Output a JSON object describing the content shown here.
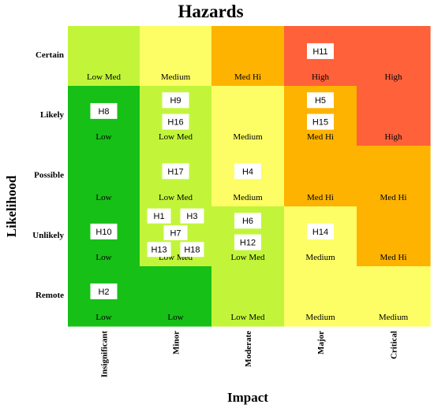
{
  "chart_data": {
    "type": "heatmap",
    "title": "Hazards",
    "xlabel": "Impact",
    "ylabel": "Likelihood",
    "x_categories": [
      "Insignificant",
      "Minor",
      "Moderate",
      "Major",
      "Critical"
    ],
    "y_categories": [
      "Certain",
      "Likely",
      "Possible",
      "Unlikely",
      "Remote"
    ],
    "cells": [
      [
        "Low Med",
        "Medium",
        "Med Hi",
        "High",
        "High"
      ],
      [
        "Low",
        "Low Med",
        "Medium",
        "Med Hi",
        "High"
      ],
      [
        "Low",
        "Low Med",
        "Medium",
        "Med Hi",
        "Med Hi"
      ],
      [
        "Low",
        "Low Med",
        "Low Med",
        "Medium",
        "Med Hi"
      ],
      [
        "Low",
        "Low",
        "Low Med",
        "Medium",
        "Medium"
      ]
    ],
    "level_colors": {
      "Low": "#16c016",
      "Low Med": "#c2f53a",
      "Medium": "#fdfd66",
      "Med Hi": "#fdb300",
      "High": "#ff613a"
    },
    "hazards": [
      {
        "label": "H11",
        "likelihood": "Certain",
        "impact": "Major"
      },
      {
        "label": "H8",
        "likelihood": "Likely",
        "impact": "Insignificant"
      },
      {
        "label": "H9",
        "likelihood": "Likely",
        "impact": "Minor"
      },
      {
        "label": "H16",
        "likelihood": "Likely",
        "impact": "Minor"
      },
      {
        "label": "H5",
        "likelihood": "Likely",
        "impact": "Major"
      },
      {
        "label": "H15",
        "likelihood": "Likely",
        "impact": "Major"
      },
      {
        "label": "H17",
        "likelihood": "Possible",
        "impact": "Minor"
      },
      {
        "label": "H4",
        "likelihood": "Possible",
        "impact": "Moderate"
      },
      {
        "label": "H10",
        "likelihood": "Unlikely",
        "impact": "Insignificant"
      },
      {
        "label": "H1",
        "likelihood": "Unlikely",
        "impact": "Minor"
      },
      {
        "label": "H3",
        "likelihood": "Unlikely",
        "impact": "Minor"
      },
      {
        "label": "H7",
        "likelihood": "Unlikely",
        "impact": "Minor"
      },
      {
        "label": "H13",
        "likelihood": "Unlikely",
        "impact": "Minor"
      },
      {
        "label": "H18",
        "likelihood": "Unlikely",
        "impact": "Minor"
      },
      {
        "label": "H6",
        "likelihood": "Unlikely",
        "impact": "Moderate"
      },
      {
        "label": "H12",
        "likelihood": "Unlikely",
        "impact": "Moderate"
      },
      {
        "label": "H14",
        "likelihood": "Unlikely",
        "impact": "Major"
      },
      {
        "label": "H2",
        "likelihood": "Remote",
        "impact": "Insignificant"
      }
    ]
  }
}
